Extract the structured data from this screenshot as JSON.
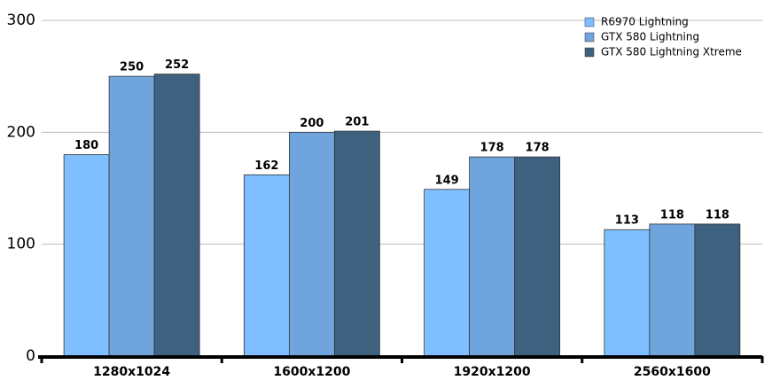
{
  "chart_data": {
    "type": "bar",
    "categories": [
      "1280x1024",
      "1600x1200",
      "1920x1200",
      "2560x1600"
    ],
    "series": [
      {
        "name": "R6970 Lightning",
        "color": "#7fbfff",
        "values": [
          180,
          162,
          149,
          113
        ]
      },
      {
        "name": "GTX 580 Lightning",
        "color": "#6fa5dc",
        "values": [
          250,
          200,
          178,
          118
        ]
      },
      {
        "name": "GTX 580 Lightning Xtreme",
        "color": "#3f6180",
        "values": [
          252,
          201,
          178,
          118
        ]
      }
    ],
    "ylim": [
      0,
      300
    ],
    "yticks": [
      0,
      100,
      200,
      300
    ],
    "grid": true,
    "legend": "top-right"
  }
}
